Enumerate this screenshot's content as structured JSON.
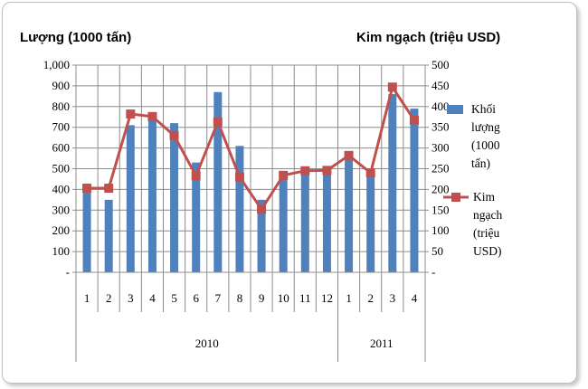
{
  "chart_data": {
    "type": "bar+line",
    "left_axis_title": "Lượng (1000 tấn)",
    "right_axis_title": "Kim ngạch (triệu USD)",
    "left_ticks": [
      "-",
      "100",
      "200",
      "300",
      "400",
      "500",
      "600",
      "700",
      "800",
      "900",
      "1,000"
    ],
    "right_ticks": [
      "-",
      "50",
      "100",
      "150",
      "200",
      "250",
      "300",
      "350",
      "400",
      "450",
      "500"
    ],
    "ylim_left": [
      0,
      1000
    ],
    "ylim_right": [
      0,
      500
    ],
    "grid": true,
    "categories": [
      "1",
      "2",
      "3",
      "4",
      "5",
      "6",
      "7",
      "8",
      "9",
      "10",
      "11",
      "12",
      "1",
      "2",
      "3",
      "4"
    ],
    "groups": [
      {
        "label": "2010",
        "count": 12
      },
      {
        "label": "2011",
        "count": 4
      }
    ],
    "series": [
      {
        "name": "Khối lượng (1000 tấn)",
        "type": "bar",
        "axis": "left",
        "color": "#4f81bd",
        "values": [
          400,
          350,
          710,
          760,
          720,
          530,
          870,
          610,
          350,
          460,
          480,
          480,
          580,
          470,
          860,
          790
        ]
      },
      {
        "name": "Kim ngạch (triệu USD)",
        "type": "line",
        "axis": "right",
        "color": "#c0504d",
        "values": [
          203,
          203,
          382,
          376,
          330,
          233,
          363,
          230,
          152,
          234,
          245,
          246,
          282,
          240,
          447,
          367
        ]
      }
    ],
    "legend_position": "right",
    "legend_lines": [
      [
        "Khối",
        "lượng",
        "(1000",
        "tấn)"
      ],
      [
        "Kim",
        "ngạch",
        "(triệu",
        "USD)"
      ]
    ]
  }
}
